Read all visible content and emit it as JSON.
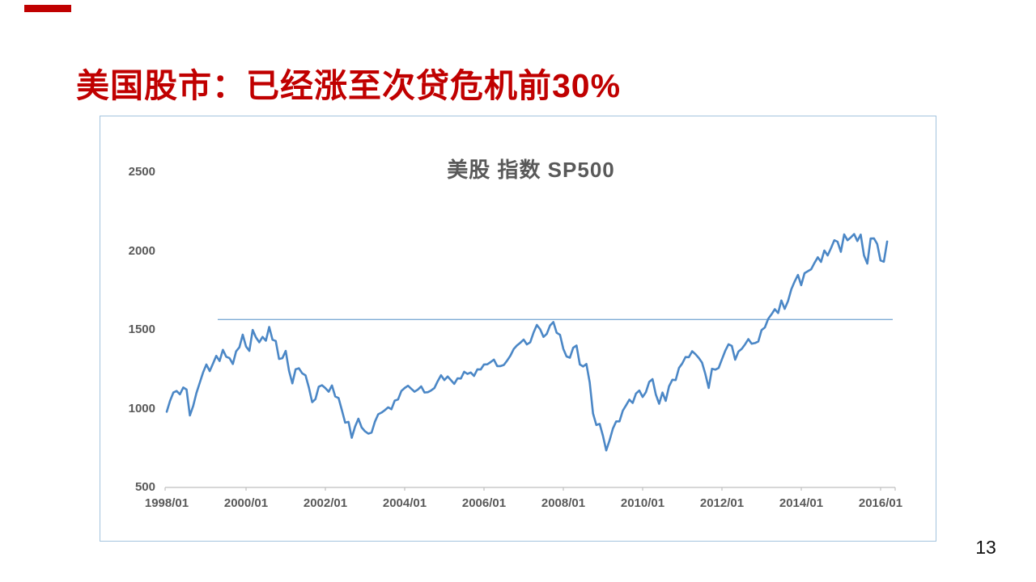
{
  "slide": {
    "title": "美国股市：已经涨至次贷危机前30%",
    "page_number": "13",
    "accent_color": "#C00000"
  },
  "chart": {
    "title": "美股 指数 SP500",
    "line_color": "#4B87C6",
    "reference_line_color": "#7FACD6",
    "border_color": "#A3C4DE",
    "axis_line_color": "#BFBFBF",
    "axis_text_color": "#595959"
  },
  "chart_data": {
    "type": "line",
    "title": "美股 指数 SP500",
    "series_name": "SP500",
    "x_start": "1998/01",
    "x_frequency": "monthly",
    "x_tick_labels": [
      "1998/01",
      "2000/01",
      "2002/01",
      "2004/01",
      "2006/01",
      "2008/01",
      "2010/01",
      "2012/01",
      "2014/01",
      "2016/01"
    ],
    "x_tick_interval_months": 24,
    "y_ticks": [
      500,
      1000,
      1500,
      2000,
      2500
    ],
    "ylim": [
      500,
      2500
    ],
    "grid": false,
    "legend": false,
    "reference_line_value": 1565,
    "series": [
      {
        "name": "SP500",
        "values": [
          980,
          1049,
          1102,
          1112,
          1091,
          1134,
          1121,
          957,
          1017,
          1099,
          1164,
          1229,
          1280,
          1238,
          1286,
          1335,
          1302,
          1373,
          1329,
          1320,
          1283,
          1363,
          1389,
          1469,
          1394,
          1366,
          1499,
          1452,
          1421,
          1455,
          1431,
          1518,
          1437,
          1429,
          1315,
          1320,
          1366,
          1240,
          1160,
          1249,
          1256,
          1224,
          1211,
          1134,
          1041,
          1060,
          1139,
          1148,
          1130,
          1107,
          1147,
          1077,
          1067,
          990,
          911,
          916,
          815,
          886,
          936,
          880,
          856,
          841,
          848,
          917,
          964,
          975,
          990,
          1008,
          996,
          1051,
          1058,
          1112,
          1131,
          1145,
          1126,
          1107,
          1121,
          1141,
          1102,
          1104,
          1115,
          1130,
          1174,
          1212,
          1181,
          1204,
          1181,
          1157,
          1192,
          1191,
          1234,
          1220,
          1229,
          1207,
          1249,
          1248,
          1280,
          1281,
          1295,
          1311,
          1270,
          1270,
          1277,
          1304,
          1336,
          1378,
          1401,
          1418,
          1438,
          1407,
          1421,
          1482,
          1531,
          1503,
          1455,
          1474,
          1527,
          1549,
          1481,
          1468,
          1379,
          1331,
          1323,
          1386,
          1400,
          1280,
          1267,
          1283,
          1166,
          969,
          896,
          903,
          826,
          735,
          798,
          873,
          919,
          919,
          987,
          1021,
          1057,
          1036,
          1096,
          1115,
          1074,
          1104,
          1169,
          1187,
          1089,
          1031,
          1102,
          1049,
          1141,
          1183,
          1181,
          1258,
          1286,
          1327,
          1326,
          1364,
          1345,
          1321,
          1292,
          1219,
          1131,
          1253,
          1247,
          1258,
          1312,
          1366,
          1408,
          1398,
          1310,
          1362,
          1379,
          1407,
          1441,
          1412,
          1416,
          1426,
          1498,
          1515,
          1569,
          1598,
          1631,
          1606,
          1686,
          1633,
          1682,
          1757,
          1806,
          1848,
          1783,
          1859,
          1872,
          1884,
          1924,
          1960,
          1931,
          2003,
          1972,
          2018,
          2068,
          2059,
          1995,
          2105,
          2068,
          2086,
          2107,
          2063,
          2104,
          1972,
          1920,
          2079,
          2080,
          2044,
          1940,
          1932,
          2060
        ]
      }
    ]
  }
}
